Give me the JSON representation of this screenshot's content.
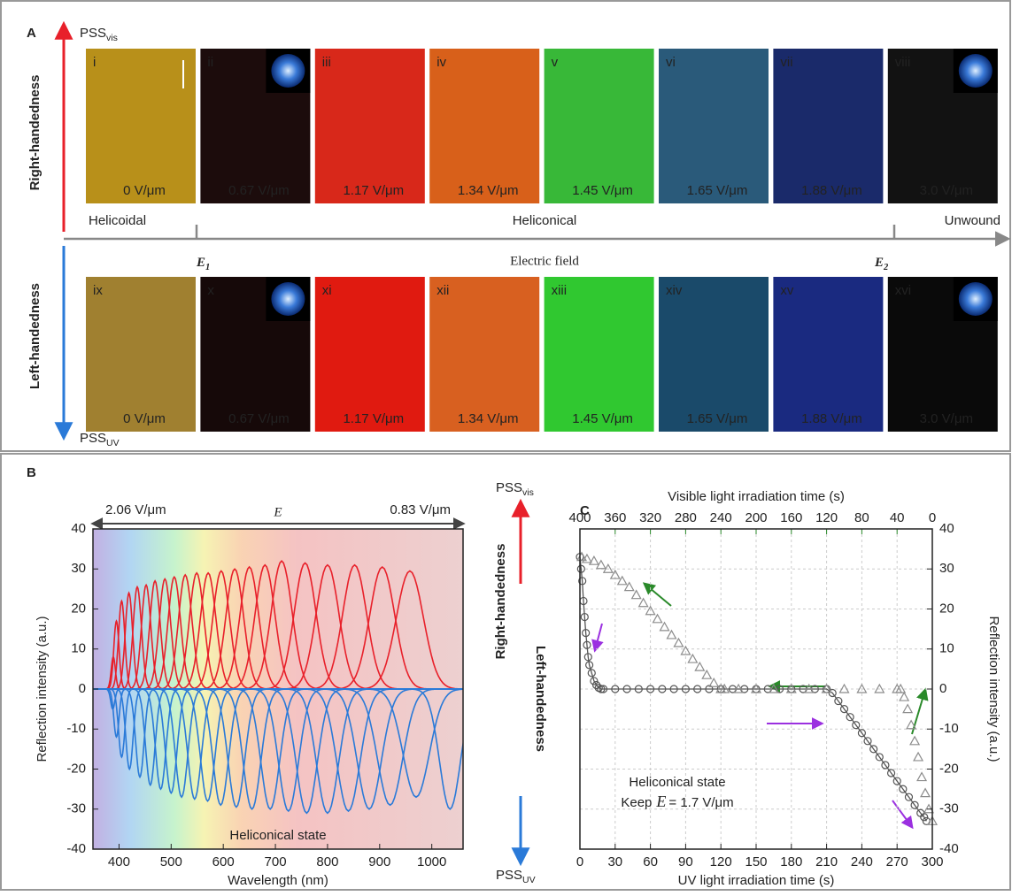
{
  "panel_a": {
    "label": "A",
    "top_end": {
      "main": "PSS",
      "sub": "vis"
    },
    "bottom_end": {
      "main": "PSS",
      "sub": "UV"
    },
    "upper_side": "Right-handedness",
    "lower_side": "Left-handedness",
    "phases": [
      "Helicoidal",
      "Heliconical",
      "Unwound"
    ],
    "thresholds": [
      {
        "main": "E",
        "sub": "1"
      },
      {
        "main": "E",
        "sub": "2"
      }
    ],
    "axis_label": "Electric field",
    "top_row": [
      {
        "id": "i",
        "field": "0 V/μm",
        "color": "#b8901a",
        "inset": false
      },
      {
        "id": "ii",
        "field": "0.67 V/μm",
        "color": "#1c0c0c",
        "inset": true
      },
      {
        "id": "iii",
        "field": "1.17 V/μm",
        "color": "#d8281a",
        "inset": false
      },
      {
        "id": "iv",
        "field": "1.34 V/μm",
        "color": "#d8601a",
        "inset": false
      },
      {
        "id": "v",
        "field": "1.45 V/μm",
        "color": "#38b838",
        "inset": false
      },
      {
        "id": "vi",
        "field": "1.65 V/μm",
        "color": "#2a5a7a",
        "inset": false
      },
      {
        "id": "vii",
        "field": "1.88 V/μm",
        "color": "#1a2a6a",
        "inset": false
      },
      {
        "id": "viii",
        "field": "3.0 V/μm",
        "color": "#121212",
        "inset": true
      }
    ],
    "bottom_row": [
      {
        "id": "ix",
        "field": "0 V/μm",
        "color": "#a08030",
        "inset": false
      },
      {
        "id": "x",
        "field": "0.67 V/μm",
        "color": "#160909",
        "inset": true
      },
      {
        "id": "xi",
        "field": "1.17 V/μm",
        "color": "#e01a10",
        "inset": false
      },
      {
        "id": "xii",
        "field": "1.34 V/μm",
        "color": "#d86020",
        "inset": false
      },
      {
        "id": "xiii",
        "field": "1.45 V/μm",
        "color": "#30c830",
        "inset": false
      },
      {
        "id": "xiv",
        "field": "1.65 V/μm",
        "color": "#1a4a6a",
        "inset": false
      },
      {
        "id": "xv",
        "field": "1.88 V/μm",
        "color": "#1a2a80",
        "inset": false
      },
      {
        "id": "xvi",
        "field": "3.0 V/μm",
        "color": "#0a0a0a",
        "inset": true
      }
    ]
  },
  "panel_b_label": "B",
  "panel_c_label": "C",
  "handedness_axis": {
    "top": {
      "main": "PSS",
      "sub": "vis"
    },
    "bottom": {
      "main": "PSS",
      "sub": "UV"
    },
    "upper": "Right-handedness",
    "lower": "Left-handedness"
  },
  "chart_data": [
    {
      "type": "peaks",
      "x_label": "Wavelength (nm)",
      "y_label": "Reflection intensity (a.u.)",
      "xlim": [
        350,
        1060
      ],
      "xticks": [
        400,
        500,
        600,
        700,
        800,
        900,
        1000
      ],
      "ylim": [
        -40,
        40
      ],
      "yticks": [
        -40,
        -30,
        -20,
        -10,
        0,
        10,
        20,
        30,
        40
      ],
      "grid": false,
      "field_range": {
        "start": "2.06 V/μm",
        "symbol": "E",
        "end": "0.83 V/μm"
      },
      "annotation": "Heliconical state",
      "series": [
        {
          "color": "#e8202a",
          "x": [
            389,
            395,
            405,
            419,
            435,
            452,
            469,
            488,
            506,
            527,
            549,
            571,
            596,
            622,
            650,
            680,
            712,
            757,
            800,
            852,
            905,
            958
          ],
          "values": [
            8,
            17,
            22,
            24,
            25.5,
            26,
            27,
            27.5,
            28,
            28.5,
            29,
            29,
            29.5,
            30,
            30.5,
            31,
            32,
            31.5,
            31,
            31,
            30.5,
            29.5
          ],
          "widths": [
            4,
            5,
            6,
            7,
            8,
            9,
            10,
            11,
            12,
            13,
            14,
            15,
            16,
            17,
            18,
            19,
            20,
            21,
            22,
            23,
            24,
            26
          ]
        },
        {
          "color": "#2a7ad8",
          "x": [
            388,
            395,
            405,
            420,
            440,
            460,
            480,
            500,
            520,
            545,
            570,
            595,
            625,
            655,
            690,
            725,
            760,
            800,
            840,
            880,
            920,
            970,
            1035
          ],
          "values": [
            -5,
            -12,
            -17,
            -20,
            -22,
            -24,
            -25,
            -26,
            -27,
            -27.5,
            -28,
            -29,
            -29.5,
            -30,
            -30,
            -30.5,
            -31,
            -31,
            -30.5,
            -30,
            -29,
            -27,
            -30
          ],
          "widths": [
            4,
            5,
            6,
            7,
            8,
            9,
            10,
            11,
            12,
            13,
            14,
            15,
            16,
            17,
            18,
            19,
            20,
            21,
            22,
            23,
            24,
            25,
            20
          ]
        }
      ]
    },
    {
      "type": "scatter",
      "x_label": "UV light irradiation time (s)",
      "x2_label": "Visible light irradiation time (s)",
      "y_label": "Reflection intensity (a.u.)",
      "xlim": [
        0,
        300
      ],
      "xticks": [
        0,
        30,
        60,
        90,
        120,
        150,
        180,
        210,
        240,
        270,
        300
      ],
      "x2lim": [
        400,
        0
      ],
      "x2ticks": [
        400,
        360,
        320,
        280,
        240,
        200,
        160,
        120,
        80,
        40,
        0
      ],
      "ylim": [
        -40,
        40
      ],
      "yticks": [
        -40,
        -30,
        -20,
        -10,
        0,
        10,
        20,
        30,
        40
      ],
      "grid": true,
      "x_color": "#9b30e0",
      "x2_color": "#2a8a2a",
      "annotation": "Heliconical state",
      "condition": {
        "prefix": "Keep",
        "symbol": "E",
        "rest": "= 1.7 V/μm"
      },
      "series": [
        {
          "marker": "circle",
          "color": "#555555",
          "x": [
            0,
            1,
            2,
            3,
            4,
            5,
            6,
            7,
            8,
            10,
            12,
            14,
            16,
            18,
            20,
            30,
            40,
            50,
            60,
            70,
            80,
            90,
            100,
            110,
            120,
            130,
            140,
            150,
            160,
            170,
            180,
            190,
            200,
            210,
            215,
            220,
            225,
            230,
            235,
            240,
            245,
            250,
            255,
            260,
            265,
            270,
            275,
            280,
            285,
            290,
            293,
            295
          ],
          "values": [
            33,
            30,
            27,
            22,
            18,
            14,
            11,
            8,
            6,
            4,
            2,
            1,
            0.3,
            0,
            0,
            0,
            0,
            0,
            0,
            0,
            0,
            0,
            0,
            0,
            0,
            0,
            0,
            0,
            0,
            0,
            0,
            0,
            0,
            0,
            -1,
            -3,
            -5,
            -7,
            -9,
            -11,
            -13,
            -15,
            -17,
            -19,
            -21,
            -23,
            -25,
            -27,
            -29,
            -31,
            -32,
            -33
          ]
        },
        {
          "marker": "triangle",
          "color": "#8c8c8c",
          "axis": "x2",
          "x": [
            0,
            4,
            8,
            12,
            16,
            20,
            24,
            28,
            32,
            36,
            40,
            60,
            80,
            100,
            120,
            140,
            160,
            180,
            200,
            220,
            236,
            240,
            248,
            256,
            264,
            272,
            280,
            288,
            296,
            304,
            312,
            320,
            328,
            336,
            344,
            352,
            360,
            368,
            376,
            384,
            392,
            398
          ],
          "values": [
            -33,
            -30,
            -26,
            -22,
            -17,
            -13,
            -9,
            -5,
            -2,
            0,
            0,
            0,
            0,
            0,
            0,
            0,
            0,
            0,
            0,
            0,
            0,
            0,
            1.5,
            3.5,
            5.5,
            7.5,
            9.5,
            11.5,
            13.5,
            15.5,
            17.5,
            19.5,
            21.5,
            23.5,
            25.5,
            27,
            28.5,
            30,
            31,
            32,
            32.5,
            33
          ]
        }
      ]
    }
  ]
}
